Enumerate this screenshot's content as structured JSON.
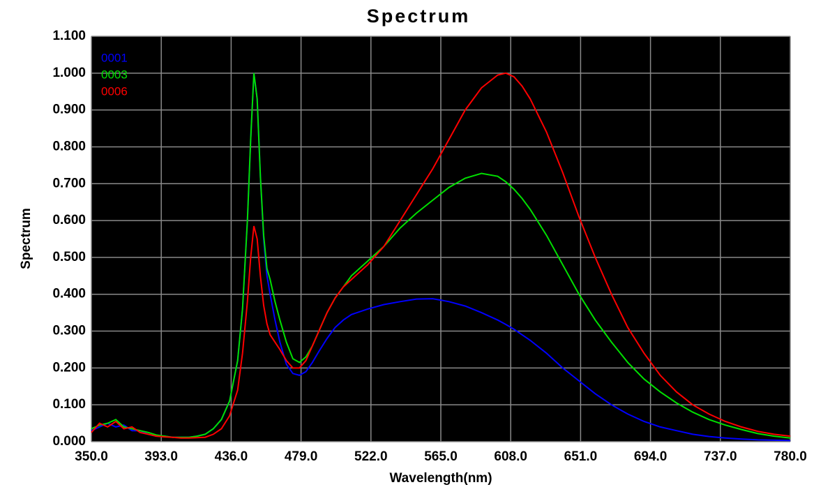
{
  "chart_data": {
    "type": "line",
    "title": "Spectrum",
    "xlabel": "Wavelength(nm)",
    "ylabel": "Spectrum",
    "x": [
      350,
      355,
      360,
      365,
      370,
      375,
      380,
      385,
      390,
      395,
      400,
      405,
      410,
      415,
      420,
      425,
      430,
      435,
      440,
      443,
      446,
      448,
      450,
      452,
      454,
      456,
      458,
      460,
      463,
      466,
      470,
      474,
      478,
      482,
      486,
      490,
      495,
      500,
      505,
      510,
      520,
      530,
      540,
      550,
      560,
      570,
      580,
      590,
      600,
      605,
      610,
      615,
      620,
      630,
      640,
      650,
      660,
      670,
      680,
      690,
      700,
      710,
      720,
      730,
      740,
      750,
      760,
      770,
      780
    ],
    "series": [
      {
        "name": "0001",
        "color": "#0000ff",
        "values": [
          0.03,
          0.04,
          0.05,
          0.04,
          0.045,
          0.03,
          0.03,
          0.02,
          0.015,
          0.015,
          0.012,
          0.012,
          0.012,
          0.015,
          0.02,
          0.035,
          0.06,
          0.11,
          0.22,
          0.36,
          0.6,
          0.82,
          1.0,
          0.93,
          0.72,
          0.55,
          0.45,
          0.4,
          0.33,
          0.27,
          0.21,
          0.185,
          0.18,
          0.19,
          0.215,
          0.245,
          0.28,
          0.31,
          0.33,
          0.345,
          0.36,
          0.372,
          0.38,
          0.387,
          0.388,
          0.38,
          0.368,
          0.35,
          0.33,
          0.318,
          0.305,
          0.29,
          0.275,
          0.24,
          0.2,
          0.165,
          0.13,
          0.1,
          0.075,
          0.055,
          0.04,
          0.03,
          0.02,
          0.014,
          0.01,
          0.007,
          0.005,
          0.004,
          0.003
        ]
      },
      {
        "name": "0003",
        "color": "#00e000",
        "values": [
          0.035,
          0.045,
          0.05,
          0.06,
          0.04,
          0.035,
          0.03,
          0.025,
          0.018,
          0.015,
          0.012,
          0.012,
          0.012,
          0.015,
          0.02,
          0.035,
          0.06,
          0.11,
          0.22,
          0.36,
          0.6,
          0.82,
          1.0,
          0.93,
          0.72,
          0.56,
          0.47,
          0.44,
          0.38,
          0.33,
          0.27,
          0.225,
          0.215,
          0.23,
          0.26,
          0.3,
          0.35,
          0.39,
          0.42,
          0.45,
          0.49,
          0.53,
          0.58,
          0.62,
          0.655,
          0.69,
          0.715,
          0.728,
          0.72,
          0.705,
          0.685,
          0.66,
          0.63,
          0.56,
          0.48,
          0.4,
          0.33,
          0.27,
          0.215,
          0.17,
          0.135,
          0.105,
          0.08,
          0.06,
          0.045,
          0.033,
          0.022,
          0.015,
          0.01
        ]
      },
      {
        "name": "0006",
        "color": "#ff0000",
        "values": [
          0.025,
          0.05,
          0.04,
          0.055,
          0.035,
          0.04,
          0.025,
          0.02,
          0.015,
          0.013,
          0.012,
          0.01,
          0.01,
          0.011,
          0.012,
          0.02,
          0.035,
          0.07,
          0.14,
          0.24,
          0.38,
          0.5,
          0.585,
          0.55,
          0.45,
          0.37,
          0.32,
          0.29,
          0.27,
          0.25,
          0.22,
          0.2,
          0.2,
          0.22,
          0.26,
          0.3,
          0.35,
          0.39,
          0.42,
          0.44,
          0.48,
          0.53,
          0.6,
          0.67,
          0.74,
          0.82,
          0.9,
          0.96,
          0.995,
          1.0,
          0.99,
          0.965,
          0.93,
          0.84,
          0.73,
          0.61,
          0.5,
          0.4,
          0.31,
          0.24,
          0.18,
          0.135,
          0.1,
          0.075,
          0.055,
          0.04,
          0.028,
          0.02,
          0.015
        ]
      }
    ],
    "xlim": [
      350,
      780
    ],
    "xticks": [
      {
        "value": 350,
        "label": "350.0"
      },
      {
        "value": 393,
        "label": "393.0"
      },
      {
        "value": 436,
        "label": "436.0"
      },
      {
        "value": 479,
        "label": "479.0"
      },
      {
        "value": 522,
        "label": "522.0"
      },
      {
        "value": 565,
        "label": "565.0"
      },
      {
        "value": 608,
        "label": "608.0"
      },
      {
        "value": 651,
        "label": "651.0"
      },
      {
        "value": 694,
        "label": "694.0"
      },
      {
        "value": 737,
        "label": "737.0"
      },
      {
        "value": 780,
        "label": "780.0"
      }
    ],
    "ylim": [
      0,
      1.1
    ],
    "yticks": [
      {
        "value": 0,
        "label": "0.000"
      },
      {
        "value": 0.1,
        "label": "0.100"
      },
      {
        "value": 0.2,
        "label": "0.200"
      },
      {
        "value": 0.3,
        "label": "0.300"
      },
      {
        "value": 0.4,
        "label": "0.400"
      },
      {
        "value": 0.5,
        "label": "0.500"
      },
      {
        "value": 0.6,
        "label": "0.600"
      },
      {
        "value": 0.7,
        "label": "0.700"
      },
      {
        "value": 0.8,
        "label": "0.800"
      },
      {
        "value": 0.9,
        "label": "0.900"
      },
      {
        "value": 1.0,
        "label": "1.000"
      },
      {
        "value": 1.1,
        "label": "1.100"
      }
    ],
    "grid": true,
    "legend": "top-left"
  }
}
